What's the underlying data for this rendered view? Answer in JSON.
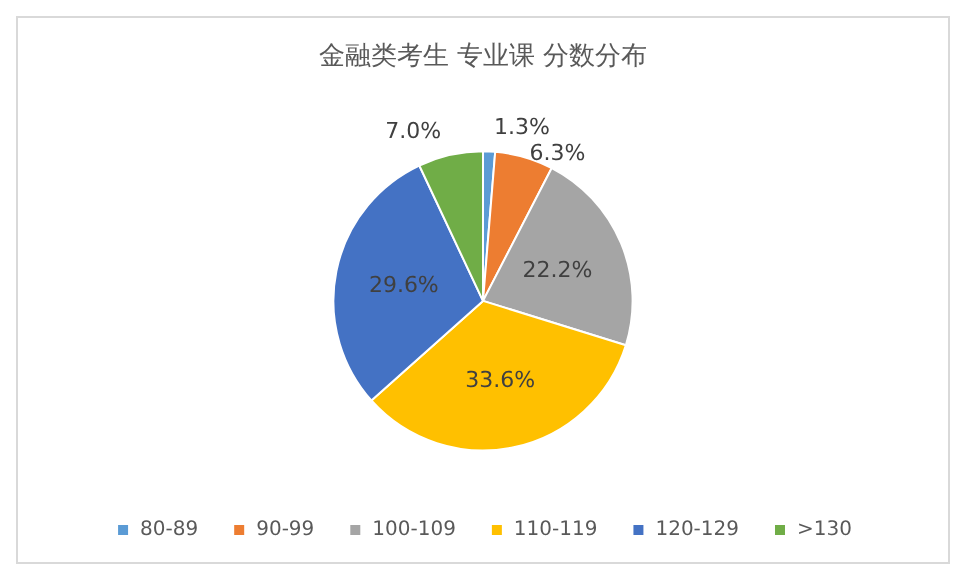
{
  "chart_data": {
    "type": "pie",
    "title": "金融类考生 专业课 分数分布",
    "categories": [
      "80-89",
      "90-99",
      "100-109",
      "110-119",
      "120-129",
      ">130"
    ],
    "values": [
      1.3,
      6.3,
      22.2,
      33.6,
      29.6,
      7.0
    ],
    "colors": [
      "#5b9bd5",
      "#ed7d31",
      "#a5a5a5",
      "#ffc000",
      "#4472c4",
      "#70ad47"
    ],
    "value_labels": [
      "1.3%",
      "6.3%",
      "22.2%",
      "33.6%",
      "29.6%",
      "7.0%"
    ],
    "legend": "bottom"
  }
}
